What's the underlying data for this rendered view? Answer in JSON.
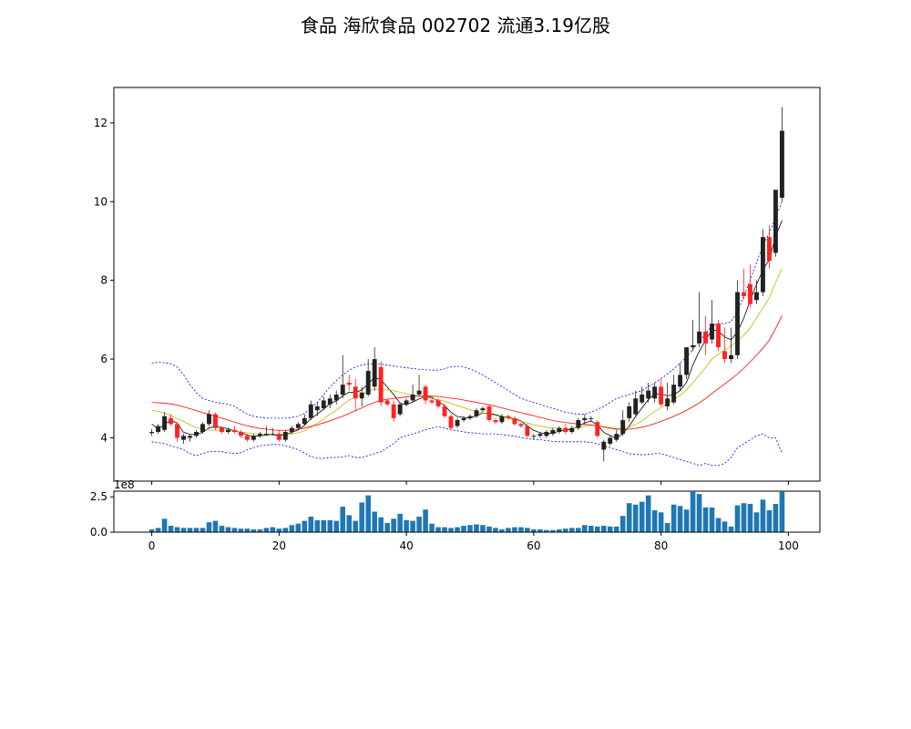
{
  "title": "食品 海欣食品 002702 流通3.19亿股",
  "chart_data": {
    "type": "candlestick",
    "title": "食品 海欣食品 002702 流通3.19亿股",
    "price_panel": {
      "xlim": [
        -5.95,
        104.95
      ],
      "ylim": [
        2.9,
        12.9
      ],
      "y_ticks": [
        4,
        6,
        8,
        10,
        12
      ],
      "y_tick_labels": [
        "4",
        "6",
        "8",
        "10",
        "12"
      ],
      "up_color": "#222222",
      "down_color": "#ff2222",
      "ohlc_order": "open, high, low, close",
      "ohlc": [
        [
          4.12,
          4.22,
          4.05,
          4.15
        ],
        [
          4.15,
          4.35,
          4.1,
          4.3
        ],
        [
          4.2,
          4.65,
          4.15,
          4.55
        ],
        [
          4.5,
          4.6,
          4.3,
          4.35
        ],
        [
          4.35,
          4.4,
          3.9,
          4.0
        ],
        [
          3.95,
          4.1,
          3.85,
          4.05
        ],
        [
          4.0,
          4.1,
          3.9,
          4.05
        ],
        [
          4.05,
          4.2,
          4.0,
          4.15
        ],
        [
          4.15,
          4.4,
          4.1,
          4.35
        ],
        [
          4.35,
          4.7,
          4.3,
          4.6
        ],
        [
          4.6,
          4.65,
          4.2,
          4.25
        ],
        [
          4.25,
          4.3,
          4.1,
          4.15
        ],
        [
          4.15,
          4.25,
          4.1,
          4.2
        ],
        [
          4.2,
          4.3,
          4.1,
          4.15
        ],
        [
          4.15,
          4.2,
          4.0,
          4.05
        ],
        [
          4.05,
          4.1,
          3.9,
          3.95
        ],
        [
          3.95,
          4.1,
          3.9,
          4.05
        ],
        [
          4.05,
          4.15,
          4.0,
          4.1
        ],
        [
          4.1,
          4.3,
          4.05,
          4.1
        ],
        [
          4.1,
          4.25,
          4.05,
          4.1
        ],
        [
          4.1,
          4.2,
          3.9,
          3.95
        ],
        [
          3.95,
          4.2,
          3.9,
          4.15
        ],
        [
          4.15,
          4.3,
          4.1,
          4.25
        ],
        [
          4.25,
          4.4,
          4.2,
          4.35
        ],
        [
          4.35,
          4.6,
          4.3,
          4.5
        ],
        [
          4.5,
          4.95,
          4.45,
          4.85
        ],
        [
          4.7,
          4.9,
          4.55,
          4.8
        ],
        [
          4.75,
          5.05,
          4.7,
          4.95
        ],
        [
          4.85,
          5.1,
          4.75,
          5.0
        ],
        [
          4.95,
          5.2,
          4.85,
          5.1
        ],
        [
          5.1,
          6.1,
          5.0,
          5.35
        ],
        [
          5.4,
          5.6,
          5.2,
          5.35
        ],
        [
          5.3,
          5.5,
          4.7,
          5.0
        ],
        [
          5.0,
          5.3,
          4.8,
          5.15
        ],
        [
          5.1,
          6.0,
          5.05,
          5.7
        ],
        [
          5.3,
          6.3,
          5.2,
          6.0
        ],
        [
          5.8,
          5.95,
          4.8,
          4.9
        ],
        [
          4.95,
          5.0,
          4.8,
          4.85
        ],
        [
          4.85,
          4.95,
          4.4,
          4.5
        ],
        [
          4.6,
          4.9,
          4.55,
          4.85
        ],
        [
          4.85,
          5.0,
          4.8,
          4.95
        ],
        [
          4.95,
          5.35,
          4.9,
          5.1
        ],
        [
          5.1,
          5.6,
          5.05,
          5.2
        ],
        [
          5.3,
          5.35,
          4.85,
          4.95
        ],
        [
          4.95,
          5.0,
          4.85,
          4.9
        ],
        [
          4.95,
          5.0,
          4.75,
          4.8
        ],
        [
          4.8,
          4.85,
          4.5,
          4.55
        ],
        [
          4.55,
          4.6,
          4.2,
          4.25
        ],
        [
          4.3,
          4.5,
          4.25,
          4.45
        ],
        [
          4.45,
          4.55,
          4.4,
          4.5
        ],
        [
          4.5,
          4.6,
          4.45,
          4.55
        ],
        [
          4.55,
          4.75,
          4.5,
          4.7
        ],
        [
          4.7,
          4.8,
          4.65,
          4.75
        ],
        [
          4.8,
          4.85,
          4.4,
          4.45
        ],
        [
          4.45,
          4.5,
          4.35,
          4.4
        ],
        [
          4.4,
          4.6,
          4.35,
          4.55
        ],
        [
          4.55,
          4.6,
          4.45,
          4.5
        ],
        [
          4.5,
          4.55,
          4.3,
          4.35
        ],
        [
          4.35,
          4.4,
          4.25,
          4.3
        ],
        [
          4.3,
          4.35,
          4.0,
          4.05
        ],
        [
          4.05,
          4.1,
          3.95,
          4.05
        ],
        [
          4.05,
          4.15,
          4.0,
          4.1
        ],
        [
          4.05,
          4.2,
          4.0,
          4.15
        ],
        [
          4.1,
          4.25,
          4.05,
          4.2
        ],
        [
          4.15,
          4.3,
          4.1,
          4.25
        ],
        [
          4.25,
          4.35,
          4.1,
          4.15
        ],
        [
          4.15,
          4.3,
          4.1,
          4.25
        ],
        [
          4.25,
          4.5,
          4.2,
          4.45
        ],
        [
          4.45,
          4.6,
          4.35,
          4.5
        ],
        [
          4.5,
          4.55,
          4.4,
          4.5
        ],
        [
          4.4,
          4.45,
          4.0,
          4.05
        ],
        [
          3.7,
          3.95,
          3.4,
          3.9
        ],
        [
          3.85,
          4.05,
          3.8,
          4.0
        ],
        [
          3.95,
          4.2,
          3.9,
          4.1
        ],
        [
          4.1,
          4.7,
          4.05,
          4.45
        ],
        [
          4.5,
          4.9,
          4.4,
          4.8
        ],
        [
          4.6,
          5.2,
          4.55,
          5.0
        ],
        [
          4.9,
          5.3,
          4.85,
          5.1
        ],
        [
          5.0,
          5.4,
          4.9,
          5.2
        ],
        [
          5.0,
          5.4,
          4.9,
          5.3
        ],
        [
          5.3,
          5.5,
          4.8,
          4.85
        ],
        [
          4.8,
          5.4,
          4.7,
          5.0
        ],
        [
          4.9,
          5.6,
          4.85,
          5.35
        ],
        [
          5.3,
          5.9,
          5.2,
          5.6
        ],
        [
          5.6,
          6.3,
          5.5,
          6.3
        ],
        [
          6.3,
          7.0,
          6.2,
          6.35
        ],
        [
          6.4,
          7.7,
          6.3,
          6.7
        ],
        [
          6.7,
          7.1,
          6.1,
          6.4
        ],
        [
          6.5,
          7.5,
          6.4,
          6.9
        ],
        [
          6.9,
          7.0,
          6.2,
          6.3
        ],
        [
          6.2,
          6.8,
          5.9,
          6.0
        ],
        [
          6.0,
          6.8,
          5.9,
          6.1
        ],
        [
          6.1,
          8.0,
          6.0,
          7.7
        ],
        [
          7.7,
          8.3,
          7.5,
          7.6
        ],
        [
          7.9,
          8.4,
          7.3,
          7.4
        ],
        [
          7.5,
          8.0,
          7.4,
          7.7
        ],
        [
          7.7,
          9.3,
          7.6,
          9.1
        ],
        [
          9.1,
          9.4,
          8.3,
          8.5
        ],
        [
          8.7,
          10.3,
          8.6,
          10.3
        ],
        [
          10.1,
          12.4,
          10.0,
          11.8
        ]
      ]
    },
    "volume_panel": {
      "ylim": [
        0,
        2.9
      ],
      "y_ticks": [
        0.0,
        2.5
      ],
      "y_tick_labels": [
        "0.0",
        "2.5"
      ],
      "exponent_label": "1e8",
      "bar_color": "#1f77b4",
      "values": [
        0.2,
        0.3,
        0.95,
        0.45,
        0.35,
        0.3,
        0.3,
        0.3,
        0.3,
        0.7,
        0.8,
        0.45,
        0.35,
        0.3,
        0.25,
        0.25,
        0.2,
        0.2,
        0.3,
        0.35,
        0.25,
        0.3,
        0.5,
        0.6,
        0.8,
        1.1,
        0.85,
        0.85,
        0.85,
        0.8,
        1.8,
        1.2,
        0.8,
        2.1,
        2.6,
        1.45,
        1.05,
        0.65,
        0.95,
        1.3,
        0.85,
        0.8,
        1.1,
        1.6,
        0.6,
        0.35,
        0.35,
        0.3,
        0.35,
        0.45,
        0.5,
        0.55,
        0.5,
        0.4,
        0.3,
        0.2,
        0.3,
        0.35,
        0.35,
        0.3,
        0.2,
        0.2,
        0.15,
        0.15,
        0.2,
        0.25,
        0.3,
        0.3,
        0.5,
        0.45,
        0.4,
        0.45,
        0.4,
        0.4,
        1.15,
        2.05,
        1.95,
        2.15,
        2.6,
        1.55,
        1.4,
        0.65,
        1.95,
        1.85,
        1.6,
        2.85,
        2.7,
        1.75,
        1.75,
        1.0,
        0.75,
        0.4,
        1.9,
        2.05,
        2.0,
        1.4,
        2.3,
        1.55,
        2.0,
        2.85
      ]
    },
    "x_ticks": [
      0,
      20,
      40,
      60,
      80,
      100
    ],
    "x_tick_labels": [
      "0",
      "20",
      "40",
      "60",
      "80",
      "100"
    ],
    "overlays": [
      {
        "kind": "moving-average",
        "color": "#000000",
        "values": [
          4.35,
          4.23,
          4.33,
          4.46,
          4.37,
          4.14,
          4.09,
          4.08,
          4.14,
          4.25,
          4.29,
          4.26,
          4.23,
          4.18,
          4.14,
          4.07,
          4.04,
          4.05,
          4.07,
          4.09,
          4.05,
          4.08,
          4.14,
          4.2,
          4.32,
          4.49,
          4.6,
          4.73,
          4.87,
          4.94,
          5.07,
          5.16,
          5.15,
          5.22,
          5.37,
          5.54,
          5.47,
          5.29,
          5.1,
          4.88,
          4.84,
          4.91,
          4.99,
          5.04,
          5.03,
          4.93,
          4.82,
          4.65,
          4.54,
          4.52,
          4.5,
          4.56,
          4.63,
          4.62,
          4.59,
          4.54,
          4.51,
          4.48,
          4.43,
          4.3,
          4.19,
          4.13,
          4.1,
          4.12,
          4.17,
          4.2,
          4.22,
          4.29,
          4.38,
          4.43,
          4.33,
          4.14,
          4.06,
          3.99,
          4.11,
          4.3,
          4.54,
          4.76,
          4.97,
          5.12,
          5.11,
          5.07,
          5.09,
          5.2,
          5.41,
          5.85,
          6.2,
          6.47,
          6.75,
          6.71,
          6.56,
          6.49,
          6.69,
          7.04,
          7.49,
          7.9,
          8.27,
          8.53,
          9.12,
          9.52
        ]
      },
      {
        "kind": "moving-average",
        "color": "#bbbb00",
        "values": [
          4.7,
          4.67,
          4.63,
          4.57,
          4.49,
          4.42,
          4.33,
          4.26,
          4.22,
          4.2,
          4.19,
          4.2,
          4.2,
          4.18,
          4.15,
          4.13,
          4.11,
          4.1,
          4.1,
          4.09,
          4.09,
          4.09,
          4.1,
          4.13,
          4.18,
          4.27,
          4.37,
          4.48,
          4.6,
          4.7,
          4.84,
          4.96,
          5.03,
          5.1,
          5.19,
          5.23,
          5.24,
          5.23,
          5.2,
          5.16,
          5.12,
          5.08,
          5.06,
          5.03,
          5.0,
          4.97,
          4.93,
          4.88,
          4.82,
          4.77,
          4.71,
          4.67,
          4.63,
          4.6,
          4.57,
          4.53,
          4.5,
          4.46,
          4.42,
          4.38,
          4.33,
          4.3,
          4.27,
          4.25,
          4.24,
          4.24,
          4.24,
          4.26,
          4.29,
          4.32,
          4.31,
          4.27,
          4.24,
          4.21,
          4.22,
          4.27,
          4.34,
          4.43,
          4.55,
          4.67,
          4.77,
          4.87,
          4.97,
          5.08,
          5.22,
          5.4,
          5.59,
          5.79,
          6.0,
          6.13,
          6.23,
          6.33,
          6.45,
          6.61,
          6.79,
          7.05,
          7.3,
          7.55,
          7.95,
          8.3
        ]
      },
      {
        "kind": "moving-average",
        "color": "#ff0000",
        "values": [
          4.9,
          4.89,
          4.88,
          4.86,
          4.83,
          4.79,
          4.74,
          4.69,
          4.64,
          4.6,
          4.55,
          4.5,
          4.45,
          4.4,
          4.35,
          4.31,
          4.27,
          4.24,
          4.22,
          4.2,
          4.19,
          4.19,
          4.2,
          4.22,
          4.25,
          4.29,
          4.33,
          4.38,
          4.43,
          4.49,
          4.55,
          4.62,
          4.69,
          4.76,
          4.84,
          4.9,
          4.95,
          4.98,
          5.0,
          5.02,
          5.04,
          5.05,
          5.06,
          5.07,
          5.06,
          5.05,
          5.03,
          5.01,
          4.99,
          4.96,
          4.93,
          4.9,
          4.87,
          4.84,
          4.8,
          4.76,
          4.72,
          4.68,
          4.64,
          4.6,
          4.56,
          4.52,
          4.48,
          4.44,
          4.41,
          4.39,
          4.37,
          4.35,
          4.34,
          4.33,
          4.31,
          4.28,
          4.25,
          4.23,
          4.22,
          4.22,
          4.24,
          4.27,
          4.31,
          4.36,
          4.42,
          4.48,
          4.55,
          4.62,
          4.7,
          4.79,
          4.89,
          5.0,
          5.13,
          5.25,
          5.37,
          5.49,
          5.62,
          5.77,
          5.93,
          6.1,
          6.28,
          6.48,
          6.78,
          7.1
        ]
      },
      {
        "kind": "upper-band",
        "color": "#0000ff",
        "values": [
          5.9,
          5.92,
          5.91,
          5.88,
          5.8,
          5.6,
          5.35,
          5.15,
          5.0,
          4.95,
          4.9,
          4.88,
          4.85,
          4.8,
          4.7,
          4.6,
          4.55,
          4.52,
          4.5,
          4.5,
          4.5,
          4.5,
          4.52,
          4.55,
          4.62,
          4.75,
          4.9,
          5.1,
          5.3,
          5.45,
          5.6,
          5.72,
          5.8,
          5.85,
          5.88,
          5.88,
          5.87,
          5.85,
          5.83,
          5.8,
          5.78,
          5.76,
          5.74,
          5.73,
          5.72,
          5.72,
          5.75,
          5.8,
          5.82,
          5.8,
          5.75,
          5.68,
          5.6,
          5.5,
          5.4,
          5.3,
          5.2,
          5.1,
          5.0,
          4.95,
          4.9,
          4.85,
          4.8,
          4.75,
          4.7,
          4.65,
          4.62,
          4.6,
          4.6,
          4.65,
          4.72,
          4.8,
          4.9,
          5.0,
          5.05,
          5.1,
          5.15,
          5.2,
          5.3,
          5.4,
          5.5,
          5.62,
          5.75,
          5.9,
          6.05,
          6.25,
          6.45,
          6.65,
          6.85,
          6.9,
          6.9,
          6.95,
          7.2,
          7.6,
          8.0,
          8.45,
          8.9,
          9.2,
          9.6,
          10.0
        ]
      },
      {
        "kind": "lower-band",
        "color": "#0000ff",
        "values": [
          3.9,
          3.88,
          3.85,
          3.8,
          3.75,
          3.7,
          3.6,
          3.55,
          3.6,
          3.65,
          3.65,
          3.65,
          3.62,
          3.6,
          3.62,
          3.7,
          3.75,
          3.8,
          3.82,
          3.83,
          3.83,
          3.8,
          3.75,
          3.7,
          3.62,
          3.52,
          3.48,
          3.48,
          3.5,
          3.5,
          3.52,
          3.55,
          3.5,
          3.5,
          3.55,
          3.6,
          3.65,
          3.75,
          3.85,
          4.0,
          4.05,
          4.1,
          4.15,
          4.2,
          4.25,
          4.28,
          4.25,
          4.2,
          4.18,
          4.15,
          4.13,
          4.12,
          4.1,
          4.1,
          4.1,
          4.08,
          4.06,
          4.04,
          4.01,
          3.98,
          3.96,
          3.95,
          3.93,
          3.91,
          3.9,
          3.9,
          3.9,
          3.9,
          3.9,
          3.88,
          3.85,
          3.8,
          3.75,
          3.7,
          3.65,
          3.6,
          3.58,
          3.57,
          3.58,
          3.6,
          3.6,
          3.55,
          3.5,
          3.45,
          3.4,
          3.35,
          3.3,
          3.35,
          3.3,
          3.3,
          3.35,
          3.5,
          3.75,
          3.85,
          3.95,
          4.05,
          4.1,
          4.0,
          4.0,
          3.6
        ]
      }
    ]
  }
}
